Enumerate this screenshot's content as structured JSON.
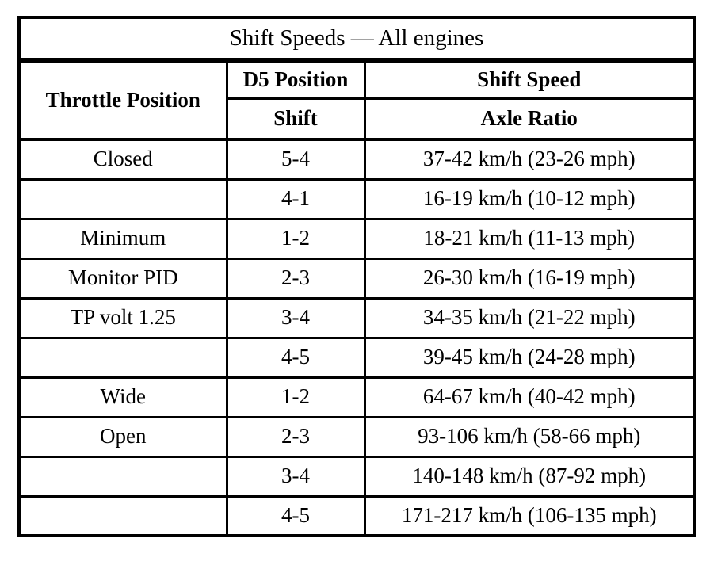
{
  "title": "Shift Speeds — All engines",
  "header": {
    "throttle_label": "Throttle Position",
    "d5_position_label": "D5 Position",
    "shift_label": "Shift",
    "shift_speed_label": "Shift Speed",
    "axle_ratio_label": "Axle Ratio"
  },
  "rows": [
    {
      "throttle": "Closed",
      "shift": "5-4",
      "speed": "37-42 km/h (23-26 mph)"
    },
    {
      "throttle": "",
      "shift": "4-1",
      "speed": "16-19 km/h (10-12 mph)"
    },
    {
      "throttle": "Minimum",
      "shift": "1-2",
      "speed": "18-21 km/h (11-13 mph)"
    },
    {
      "throttle": "Monitor PID",
      "shift": "2-3",
      "speed": "26-30 km/h (16-19 mph)"
    },
    {
      "throttle": "TP volt 1.25",
      "shift": "3-4",
      "speed": "34-35 km/h (21-22 mph)"
    },
    {
      "throttle": "",
      "shift": "4-5",
      "speed": "39-45 km/h (24-28 mph)"
    },
    {
      "throttle": "Wide",
      "shift": "1-2",
      "speed": "64-67 km/h (40-42 mph)"
    },
    {
      "throttle": "Open",
      "shift": "2-3",
      "speed": "93-106 km/h (58-66 mph)"
    },
    {
      "throttle": "",
      "shift": "3-4",
      "speed": "140-148 km/h (87-92 mph)"
    },
    {
      "throttle": "",
      "shift": "4-5",
      "speed": "171-217 km/h (106-135 mph)"
    }
  ],
  "colors": {
    "border": "#000000",
    "background": "#ffffff",
    "text": "#000000"
  }
}
